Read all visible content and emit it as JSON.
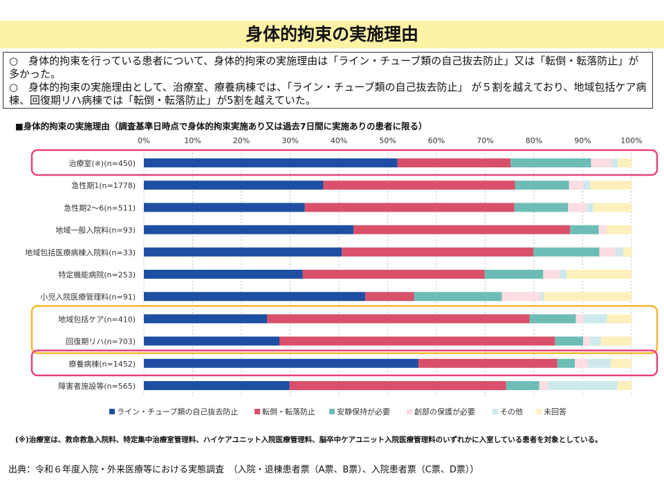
{
  "page_title": "身体的拘束の実施理由",
  "summary": [
    "○　身体的拘束を行っている患者について、身体的拘束の実施理由は「ライン・チューブ類の自己抜去防止」又は「転倒・転落防止」が多かった。",
    "○　身体的拘束の実施理由として、治療室、療養病棟では、「ライン・チューブ類の自己抜去防止」 が５割を越えており、地域包括ケア病棟、回復期リハ病棟では「転倒・転落防止」が5割を越えていた。"
  ],
  "chart_title": "■身体的拘束の実施理由（調査基準日時点で身体的拘束実施あり又は過去7日間に実施ありの患者に限る）",
  "chart_data": {
    "type": "bar",
    "orientation": "horizontal",
    "stacked": true,
    "xlim": [
      0,
      100
    ],
    "x_ticks": [
      "0%",
      "10%",
      "20%",
      "30%",
      "40%",
      "50%",
      "60%",
      "70%",
      "80%",
      "90%",
      "100%"
    ],
    "categories": [
      "治療室(※)(n=450)",
      "急性期1(n=1778)",
      "急性期2～6(n=511)",
      "地域一般入院料(n=93)",
      "地域包括医療病棟入院料(n=33)",
      "特定機能病院(n=253)",
      "小児入院医療管理料(n=91)",
      "地域包括ケア(n=410)",
      "回復期リハ(n=703)",
      "療養病棟(n=1452)",
      "障害者施設等(n=565)"
    ],
    "series": [
      {
        "name": "ライン・チューブ類の自己抜去防止",
        "color": "#1f4fa3",
        "values": [
          52.0,
          36.8,
          33.0,
          43.0,
          40.6,
          32.6,
          45.4,
          25.3,
          27.8,
          56.3,
          29.9
        ]
      },
      {
        "name": "転倒・転落防止",
        "color": "#d9506a",
        "values": [
          23.2,
          39.3,
          43.0,
          44.4,
          39.3,
          37.3,
          10.0,
          53.8,
          56.5,
          28.5,
          44.4
        ]
      },
      {
        "name": "安静保持が必要",
        "color": "#6dbdb6",
        "values": [
          16.5,
          11.1,
          11.0,
          5.9,
          13.5,
          12.0,
          18.0,
          9.5,
          5.8,
          3.6,
          6.8
        ]
      },
      {
        "name": "創部の保護が必要",
        "color": "#fbdde3",
        "values": [
          4.3,
          3.0,
          3.9,
          1.6,
          3.3,
          3.4,
          7.9,
          1.6,
          1.4,
          2.7,
          1.7
        ]
      },
      {
        "name": "その他",
        "color": "#cde9eb",
        "values": [
          1.2,
          1.4,
          1.2,
          0.0,
          1.6,
          1.4,
          0.7,
          4.8,
          2.2,
          4.7,
          14.3
        ]
      },
      {
        "name": "未回答",
        "color": "#fdf0bd",
        "values": [
          2.8,
          8.4,
          7.9,
          5.1,
          1.7,
          13.3,
          18.0,
          5.0,
          6.3,
          4.2,
          2.9
        ]
      }
    ],
    "highlight_groups": [
      {
        "color": "#e8427e",
        "rows": [
          0
        ]
      },
      {
        "color": "#f5b52e",
        "rows": [
          7,
          8
        ]
      },
      {
        "color": "#e8427e",
        "rows": [
          9
        ]
      }
    ],
    "legend_position": "bottom",
    "grid": true
  },
  "footnote": "(※)治療室は、救命救急入院料、特定集中治療室管理料、ハイケアユニット入院医療管理料、脳卒中ケアユニット入院医療管理料のいずれかに入室している患者を対象としている。",
  "source": "出典：令和６年度入院・外来医療等における実態調査　（入院・退棟患者票（A票、B票）、入院患者票（C票、D票））"
}
